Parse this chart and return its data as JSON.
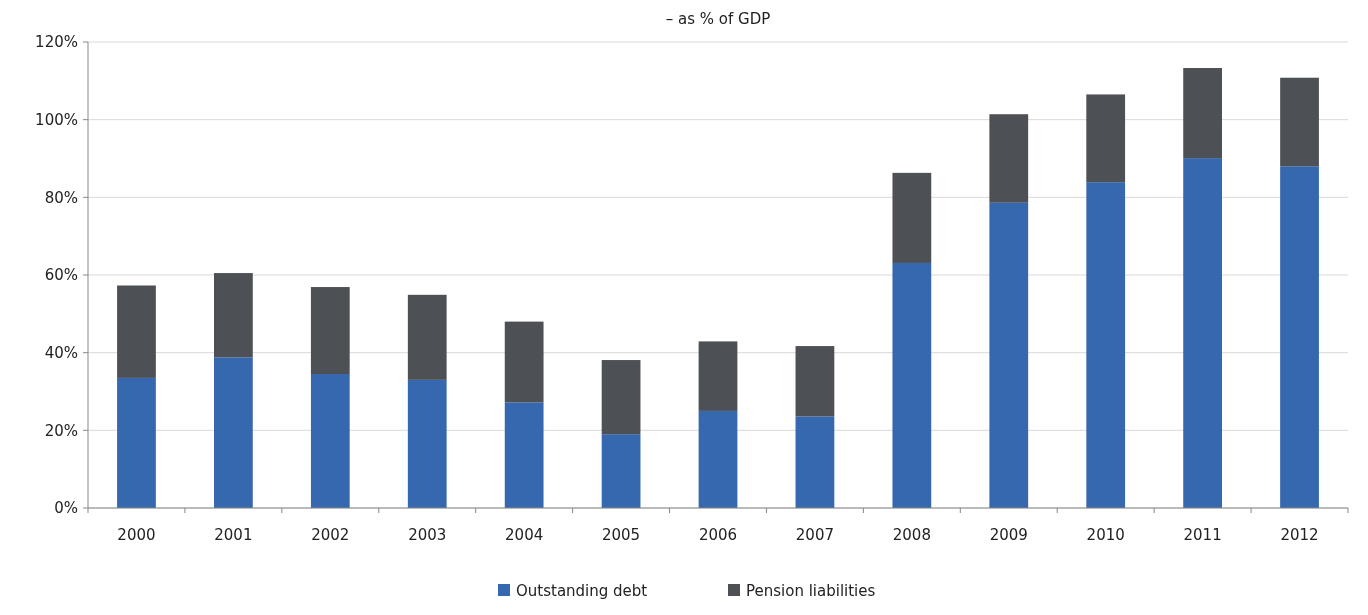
{
  "chart_data": {
    "type": "bar",
    "title": "– as % of GDP",
    "stacked": true,
    "categories": [
      "2000",
      "2001",
      "2002",
      "2003",
      "2004",
      "2005",
      "2006",
      "2007",
      "2008",
      "2009",
      "2010",
      "2011",
      "2012"
    ],
    "series": [
      {
        "name": "Outstanding debt",
        "color": "#3568ae",
        "values": [
          33.5,
          38.8,
          34.5,
          33,
          27.2,
          19,
          25,
          23.6,
          63.1,
          78.6,
          83.9,
          90.1,
          88
        ]
      },
      {
        "name": "Pension liabilities",
        "color": "#4d5155",
        "values": [
          23.8,
          21.7,
          22.4,
          21.9,
          20.8,
          19.1,
          17.9,
          18.1,
          23.2,
          22.8,
          22.6,
          23.2,
          22.8
        ]
      }
    ],
    "ylim": [
      0,
      120
    ],
    "yticks": [
      {
        "value": 0,
        "label": "0%"
      },
      {
        "value": 20,
        "label": "20%"
      },
      {
        "value": 40,
        "label": "40%"
      },
      {
        "value": 60,
        "label": "60%"
      },
      {
        "value": 80,
        "label": "80%"
      },
      {
        "value": 100,
        "label": "100%"
      },
      {
        "value": 120,
        "label": "120%"
      }
    ],
    "grid": "y",
    "legend": "bottom"
  }
}
